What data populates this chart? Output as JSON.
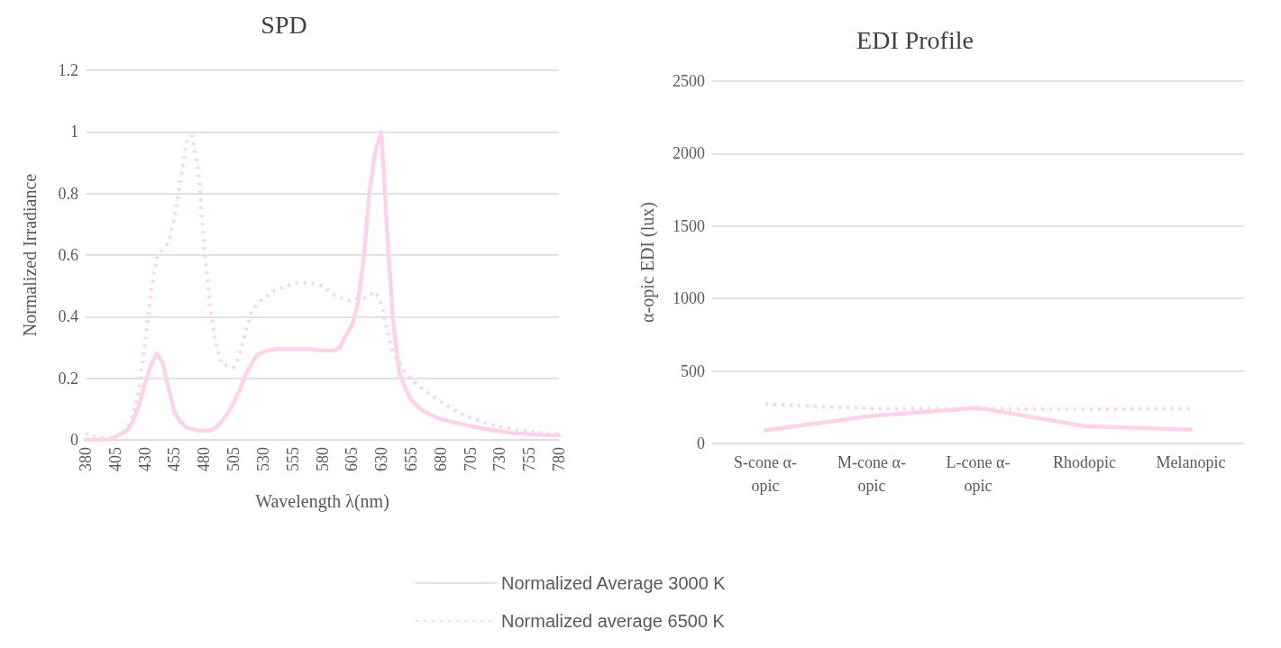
{
  "chart_data": [
    {
      "type": "line",
      "title": "SPD",
      "xlabel": "Wavelength λ(nm)",
      "ylabel": "Normalized Irradiance",
      "xlim": [
        380,
        780
      ],
      "xticks": [
        380,
        405,
        430,
        455,
        480,
        505,
        530,
        555,
        580,
        605,
        630,
        655,
        680,
        705,
        730,
        755,
        780
      ],
      "ylim": [
        0,
        1.2
      ],
      "yticks": [
        0,
        0.2,
        0.4,
        0.6,
        0.8,
        1,
        1.2
      ],
      "grid": "y",
      "legend": "bottom",
      "marker": "none",
      "series": [
        {
          "name": "Normalized Average 3000 K",
          "color": "#fcd3ea",
          "line_style": "solid",
          "x": [
            380,
            390,
            400,
            410,
            415,
            420,
            425,
            430,
            435,
            440,
            445,
            450,
            455,
            460,
            465,
            470,
            475,
            480,
            485,
            490,
            495,
            500,
            505,
            510,
            515,
            520,
            525,
            530,
            535,
            540,
            550,
            560,
            570,
            580,
            590,
            595,
            600,
            605,
            610,
            615,
            620,
            625,
            630,
            635,
            640,
            645,
            650,
            655,
            660,
            665,
            670,
            675,
            680,
            690,
            700,
            710,
            720,
            730,
            740,
            750,
            760,
            770,
            780
          ],
          "values": [
            0,
            0,
            0,
            0.02,
            0.03,
            0.06,
            0.11,
            0.18,
            0.24,
            0.28,
            0.25,
            0.17,
            0.09,
            0.06,
            0.04,
            0.035,
            0.03,
            0.03,
            0.03,
            0.04,
            0.06,
            0.085,
            0.12,
            0.16,
            0.21,
            0.245,
            0.275,
            0.285,
            0.29,
            0.295,
            0.295,
            0.295,
            0.295,
            0.29,
            0.29,
            0.3,
            0.34,
            0.37,
            0.44,
            0.59,
            0.81,
            0.94,
            1,
            0.66,
            0.38,
            0.22,
            0.17,
            0.13,
            0.11,
            0.095,
            0.085,
            0.075,
            0.068,
            0.058,
            0.049,
            0.041,
            0.034,
            0.028,
            0.023,
            0.02,
            0.017,
            0.015,
            0.014
          ]
        },
        {
          "name": "Normalized average 6500 K",
          "color": "#fcd3ea",
          "line_style": "dotted",
          "x": [
            380,
            385,
            390,
            395,
            400,
            405,
            410,
            415,
            420,
            425,
            430,
            435,
            440,
            445,
            450,
            455,
            460,
            465,
            467,
            470,
            475,
            480,
            485,
            490,
            495,
            500,
            505,
            510,
            515,
            520,
            525,
            530,
            540,
            550,
            560,
            570,
            580,
            590,
            600,
            605,
            610,
            615,
            620,
            625,
            630,
            635,
            640,
            645,
            650,
            655,
            660,
            670,
            680,
            690,
            700,
            710,
            720,
            730,
            740,
            750,
            760,
            770,
            780
          ],
          "values": [
            0.02,
            0.01,
            0.01,
            0.005,
            0.005,
            0.005,
            0.02,
            0.035,
            0.08,
            0.16,
            0.31,
            0.47,
            0.59,
            0.62,
            0.64,
            0.72,
            0.84,
            0.96,
            0.985,
            0.985,
            0.88,
            0.64,
            0.44,
            0.31,
            0.245,
            0.24,
            0.235,
            0.275,
            0.35,
            0.41,
            0.44,
            0.46,
            0.485,
            0.5,
            0.51,
            0.51,
            0.5,
            0.47,
            0.455,
            0.45,
            0.46,
            0.46,
            0.47,
            0.48,
            0.44,
            0.35,
            0.28,
            0.25,
            0.22,
            0.2,
            0.18,
            0.15,
            0.125,
            0.1,
            0.08,
            0.065,
            0.053,
            0.043,
            0.036,
            0.03,
            0.025,
            0.02,
            0.02
          ]
        }
      ]
    },
    {
      "type": "line",
      "title": "EDI Profile",
      "ylabel": "α-opic EDI (lux)",
      "categories": [
        "S-cone α-opic",
        "M-cone α-opic",
        "L-cone α-opic",
        "Rhodopic",
        "Melanopic"
      ],
      "ylim": [
        0,
        2500
      ],
      "yticks": [
        0,
        500,
        1000,
        1500,
        2000,
        2500
      ],
      "grid": "y",
      "marker": "none",
      "series": [
        {
          "color": "#fcd3ea",
          "line_style": "solid",
          "values": [
            90,
            190,
            245,
            120,
            95
          ]
        },
        {
          "color": "#fcd3ea",
          "line_style": "dotted",
          "values": [
            270,
            240,
            240,
            235,
            240
          ]
        }
      ]
    }
  ]
}
